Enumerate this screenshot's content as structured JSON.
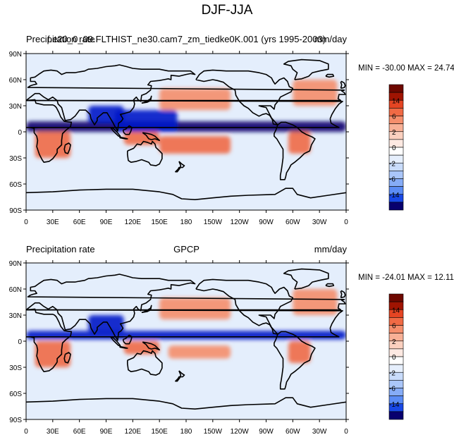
{
  "title": "DJF-JJA",
  "colors": {
    "levels_palette": [
      "#08006e",
      "#0019c8",
      "#1848e6",
      "#3a6cf2",
      "#5b8cf5",
      "#86acf7",
      "#aac6f9",
      "#c9dcfb",
      "#e6effd",
      "#ffffff",
      "#fde9e2",
      "#fbd0bf",
      "#f8b096",
      "#f58e6c",
      "#f06a45",
      "#e54523",
      "#c92a10",
      "#a01402",
      "#6e0800"
    ],
    "ocean_zero": "#e4eefc",
    "land_line": "#000000"
  },
  "panels": [
    {
      "left_label": "Precipitation rate",
      "center_label": "f.e20_0_09.FLTHIST_ne30.cam7_zm_tiedke0K.001 (yrs 1995-2003)",
      "right_label": "mm/day",
      "min_max": "MIN = -30.00  MAX =  24.74"
    },
    {
      "left_label": "Precipitation rate",
      "center_label": "GPCP",
      "right_label": "mm/day",
      "min_max": "MIN = -24.01  MAX =  12.11"
    }
  ],
  "chart_data": [
    {
      "type": "heatmap",
      "subtype": "filled-contour world map",
      "title": "DJF-JJA",
      "subtitle_left": "Precipitation rate",
      "subtitle_center": "f.e20_0_09.FLTHIST_ne30.cam7_zm_tiedke0K.001 (yrs 1995-2003)",
      "subtitle_right": "mm/day",
      "x_ticks": [
        "0",
        "30E",
        "60E",
        "90E",
        "120E",
        "150E",
        "180",
        "150W",
        "120W",
        "90W",
        "60W",
        "30W",
        "0"
      ],
      "y_ticks": [
        "90N",
        "60N",
        "30N",
        "0",
        "30S",
        "60S",
        "90S"
      ],
      "xlim": [
        0,
        360
      ],
      "ylim": [
        -90,
        90
      ],
      "colorbar_ticks": [
        "14",
        "6",
        "2",
        "0",
        "-2",
        "-6",
        "-14"
      ],
      "colorbar_levels": [
        -14,
        -10,
        -6,
        -4,
        -2,
        -1,
        -0.5,
        0,
        0.5,
        1,
        2,
        4,
        6,
        10,
        14
      ],
      "min": -30.0,
      "max": 24.74,
      "features": [
        {
          "name": "ITCZ drying band (north)",
          "lon": [
            0,
            360
          ],
          "lat": [
            0,
            12
          ],
          "value": -14
        },
        {
          "name": "West Pacific / Maritime drying",
          "lon": [
            100,
            170
          ],
          "lat": [
            0,
            25
          ],
          "value": -10
        },
        {
          "name": "South Asia monsoon drying",
          "lon": [
            70,
            110
          ],
          "lat": [
            10,
            30
          ],
          "value": -10
        },
        {
          "name": "North Pacific storm track wetting",
          "lon": [
            150,
            230
          ],
          "lat": [
            25,
            50
          ],
          "value": 4
        },
        {
          "name": "North Atlantic wetting",
          "lon": [
            300,
            350
          ],
          "lat": [
            30,
            60
          ],
          "value": 4
        },
        {
          "name": "South Africa wetting",
          "lon": [
            10,
            50
          ],
          "lat": [
            -30,
            0
          ],
          "value": 6
        },
        {
          "name": "South America wetting",
          "lon": [
            295,
            320
          ],
          "lat": [
            -25,
            0
          ],
          "value": 6
        },
        {
          "name": "SPCZ wetting",
          "lon": [
            150,
            230
          ],
          "lat": [
            -25,
            -5
          ],
          "value": 6
        },
        {
          "name": "Maritime continent wetting",
          "lon": [
            110,
            150
          ],
          "lat": [
            -15,
            0
          ],
          "value": 6
        }
      ]
    },
    {
      "type": "heatmap",
      "subtype": "filled-contour world map",
      "title": "DJF-JJA",
      "subtitle_left": "Precipitation rate",
      "subtitle_center": "GPCP",
      "subtitle_right": "mm/day",
      "x_ticks": [
        "0",
        "30E",
        "60E",
        "90E",
        "120E",
        "150E",
        "180",
        "150W",
        "120W",
        "90W",
        "60W",
        "30W",
        "0"
      ],
      "y_ticks": [
        "90N",
        "60N",
        "30N",
        "0",
        "30S",
        "60S",
        "90S"
      ],
      "xlim": [
        0,
        360
      ],
      "ylim": [
        -90,
        90
      ],
      "colorbar_ticks": [
        "14",
        "6",
        "2",
        "0",
        "-2",
        "-6",
        "-14"
      ],
      "colorbar_levels": [
        -14,
        -10,
        -6,
        -4,
        -2,
        -1,
        -0.5,
        0,
        0.5,
        1,
        2,
        4,
        6,
        10,
        14
      ],
      "min": -24.01,
      "max": 12.11,
      "features": [
        {
          "name": "ITCZ drying band (north)",
          "lon": [
            0,
            360
          ],
          "lat": [
            2,
            12
          ],
          "value": -10
        },
        {
          "name": "South Asia monsoon drying",
          "lon": [
            70,
            110
          ],
          "lat": [
            10,
            30
          ],
          "value": -10
        },
        {
          "name": "North Pacific wetting",
          "lon": [
            150,
            230
          ],
          "lat": [
            25,
            50
          ],
          "value": 4
        },
        {
          "name": "North Atlantic wetting",
          "lon": [
            300,
            350
          ],
          "lat": [
            30,
            60
          ],
          "value": 4
        },
        {
          "name": "South Africa wetting",
          "lon": [
            10,
            50
          ],
          "lat": [
            -30,
            0
          ],
          "value": 6
        },
        {
          "name": "South America wetting",
          "lon": [
            295,
            320
          ],
          "lat": [
            -25,
            0
          ],
          "value": 6
        },
        {
          "name": "SPCZ wetting",
          "lon": [
            160,
            230
          ],
          "lat": [
            -20,
            -5
          ],
          "value": 4
        },
        {
          "name": "Maritime continent wetting",
          "lon": [
            110,
            150
          ],
          "lat": [
            -15,
            0
          ],
          "value": 6
        }
      ]
    }
  ]
}
